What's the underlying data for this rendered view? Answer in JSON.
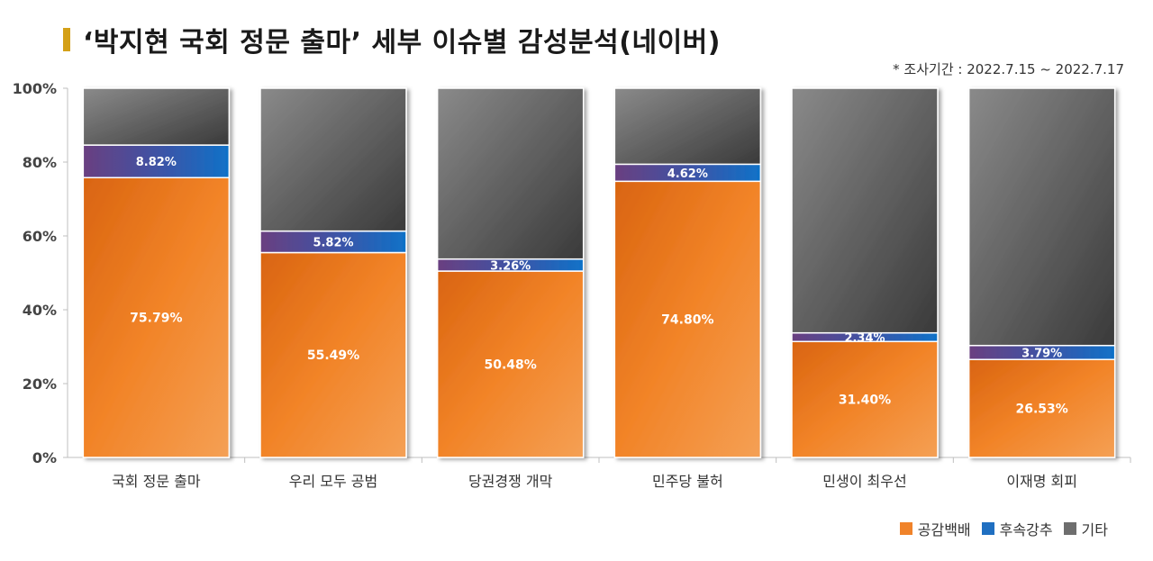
{
  "title": "‘박지현 국회 정문 출마’ 세부 이슈별 감성분석(네이버)",
  "subtitle": "* 조사기간 : 2022.7.15 ~ 2022.7.17",
  "chart_data": {
    "type": "bar",
    "stacked": true,
    "categories": [
      "국회 정문 출마",
      "우리 모두 공범",
      "당권경쟁 개막",
      "민주당 불허",
      "민생이 최우선",
      "이재명 회피"
    ],
    "series": [
      {
        "name": "공감백배",
        "color": "#f0832a",
        "values": [
          75.79,
          55.49,
          50.48,
          74.8,
          31.4,
          26.53
        ],
        "labels": [
          "75.79%",
          "55.49%",
          "50.48%",
          "74.80%",
          "31.40%",
          "26.53%"
        ]
      },
      {
        "name": "후속강추",
        "color": "#1f6fc1",
        "values": [
          8.82,
          5.82,
          3.26,
          4.62,
          2.34,
          3.79
        ],
        "labels": [
          "8.82%",
          "5.82%",
          "3.26%",
          "4.62%",
          "2.34%",
          "3.79%"
        ]
      },
      {
        "name": "기타",
        "color": "#6e6e6e",
        "values": [
          15.39,
          38.69,
          46.26,
          20.58,
          66.26,
          69.68
        ]
      }
    ],
    "ylim": [
      0,
      100
    ],
    "yticks": [
      "0%",
      "20%",
      "40%",
      "60%",
      "80%",
      "100%"
    ],
    "legend_position": "bottom-right",
    "grid": false
  }
}
